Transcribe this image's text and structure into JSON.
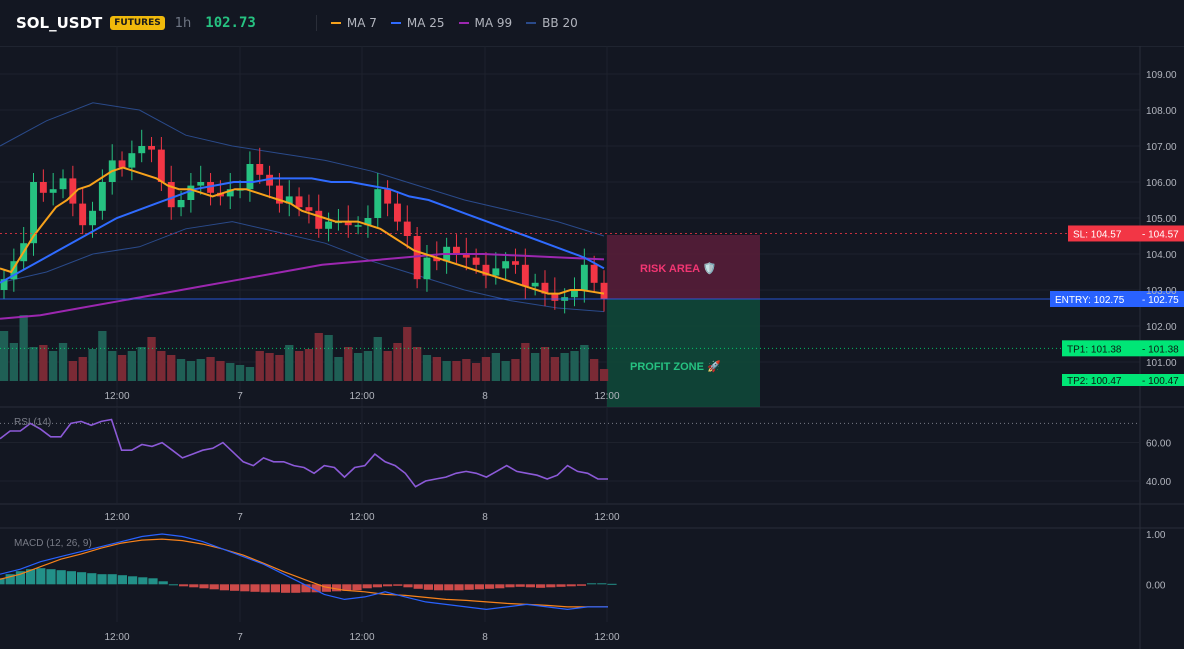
{
  "header": {
    "symbol": "SOL_USDT",
    "market_badge": "FUTURES",
    "timeframe": "1h",
    "last_price": "102.73",
    "legend": [
      {
        "label": "MA 7",
        "color": "#f7a21b"
      },
      {
        "label": "MA 25",
        "color": "#2f6bff"
      },
      {
        "label": "MA 99",
        "color": "#9c27b0"
      },
      {
        "label": "BB 20",
        "color": "#2a4a8a"
      }
    ]
  },
  "chart_data": {
    "type": "candlestick",
    "x_ticks": [
      "12:00",
      "7",
      "12:00",
      "8",
      "12:00"
    ],
    "y_ticks": [
      "109.00",
      "108.00",
      "107.00",
      "106.00",
      "105.00",
      "104.00",
      "103.00",
      "102.00",
      "101.00"
    ],
    "ylim": [
      100.5,
      109.5
    ],
    "close": [
      103.3,
      103.8,
      104.3,
      106.0,
      105.7,
      105.8,
      106.1,
      105.4,
      104.8,
      105.2,
      106.0,
      106.6,
      106.4,
      106.8,
      107.0,
      106.9,
      106.0,
      105.3,
      105.5,
      105.9,
      106.0,
      105.7,
      105.6,
      105.8,
      105.8,
      106.5,
      106.2,
      105.9,
      105.4,
      105.6,
      105.3,
      105.2,
      104.7,
      104.9,
      104.9,
      104.8,
      104.8,
      105.0,
      105.8,
      105.4,
      104.9,
      104.5,
      103.3,
      103.9,
      103.8,
      104.2,
      104.0,
      103.9,
      103.7,
      103.4,
      103.6,
      103.8,
      103.7,
      103.1,
      103.2,
      102.9,
      102.7,
      102.8,
      103.0,
      103.7,
      103.2,
      102.75
    ],
    "ma7": [
      103.6,
      103.5,
      104.0,
      104.5,
      104.9,
      105.3,
      105.5,
      105.8,
      105.9,
      106.1,
      106.3,
      106.4,
      106.3,
      106.2,
      106.1,
      105.9,
      105.8,
      105.8,
      105.7,
      105.6,
      105.7,
      105.8,
      105.8,
      105.7,
      105.6,
      105.5,
      105.4,
      105.2,
      105.1,
      105.0,
      104.9,
      104.9,
      104.9,
      104.8,
      104.7,
      104.5,
      104.3,
      104.1,
      104.0,
      103.9,
      103.8,
      103.7,
      103.6,
      103.5,
      103.4,
      103.3,
      103.2,
      103.1,
      103.0,
      102.9,
      102.9,
      103.0,
      103.0,
      102.95,
      102.9
    ],
    "ma25": [
      103.2,
      103.5,
      103.8,
      104.1,
      104.4,
      104.7,
      105.0,
      105.2,
      105.4,
      105.6,
      105.8,
      105.9,
      106.0,
      106.0,
      106.1,
      106.1,
      106.1,
      106.0,
      106.0,
      105.9,
      105.8,
      105.6,
      105.5,
      105.3,
      105.1,
      104.9,
      104.7,
      104.5,
      104.3,
      104.1,
      103.9,
      103.6
    ],
    "ma99": [
      102.2,
      102.3,
      102.5,
      102.7,
      102.9,
      103.1,
      103.3,
      103.5,
      103.7,
      103.8,
      103.9,
      104.0,
      104.0,
      103.95,
      103.9,
      103.85
    ],
    "bb_upper": [
      107.0,
      107.7,
      108.2,
      108.0,
      107.3,
      107.0,
      106.8,
      106.6,
      106.3,
      105.9,
      105.5,
      105.2,
      104.9,
      104.5
    ],
    "bb_lower": [
      103.2,
      103.5,
      104.0,
      104.2,
      104.7,
      104.9,
      104.6,
      104.3,
      103.8,
      103.4,
      103.0,
      102.7,
      102.5,
      102.4
    ],
    "volume_labels": [],
    "annotations": {
      "sl": {
        "label": "SL: 104.57",
        "value": "104.57",
        "price": 104.57,
        "color": "#f23645"
      },
      "entry": {
        "label": "ENTRY: 102.75",
        "value": "102.75",
        "price": 102.75,
        "color": "#2962ff"
      },
      "tp1": {
        "label": "TP1: 101.38",
        "value": "101.38",
        "price": 101.38,
        "color": "#00e676"
      },
      "tp2": {
        "label": "TP2: 100.47",
        "value": "100.47",
        "price": 100.47,
        "color": "#00e676"
      },
      "risk_area": "RISK AREA 🛡️",
      "profit_zone": "PROFIT ZONE 🚀"
    },
    "rsi": {
      "label": "RSI (14)",
      "y_ticks": [
        "60.00",
        "40.00"
      ],
      "ylim": [
        28,
        78
      ],
      "values": [
        62,
        66,
        66,
        70,
        67,
        63,
        63,
        70,
        71,
        69,
        71,
        72,
        56,
        56,
        59,
        58,
        60,
        56,
        52,
        54,
        56,
        57,
        60,
        55,
        50,
        48,
        52,
        50,
        50,
        48,
        47,
        44,
        48,
        47,
        42,
        47,
        48,
        54,
        50,
        48,
        44,
        37,
        40,
        41,
        42,
        44,
        45,
        44,
        42,
        45,
        48,
        45,
        44,
        43,
        41,
        43,
        48,
        45,
        44,
        41,
        41
      ]
    },
    "macd": {
      "label": "MACD (12, 26, 9)",
      "y_ticks": [
        "1.00",
        "0.00"
      ],
      "ylim": [
        -0.75,
        1.1
      ],
      "macd": [
        0.2,
        0.3,
        0.45,
        0.55,
        0.65,
        0.75,
        0.85,
        0.95,
        1.0,
        0.95,
        0.85,
        0.7,
        0.55,
        0.4,
        0.2,
        0.0,
        -0.2,
        -0.3,
        -0.25,
        -0.15,
        -0.25,
        -0.35,
        -0.4,
        -0.45,
        -0.5,
        -0.45,
        -0.4,
        -0.45,
        -0.5,
        -0.45,
        -0.45
      ],
      "signal": [
        0.1,
        0.2,
        0.35,
        0.5,
        0.6,
        0.72,
        0.82,
        0.88,
        0.9,
        0.87,
        0.8,
        0.7,
        0.58,
        0.42,
        0.25,
        0.1,
        -0.05,
        -0.12,
        -0.15,
        -0.2,
        -0.22,
        -0.26,
        -0.3,
        -0.32,
        -0.35,
        -0.38,
        -0.4,
        -0.42,
        -0.45,
        -0.45,
        -0.45
      ],
      "hist": [
        0.12,
        0.2,
        0.26,
        0.3,
        0.32,
        0.3,
        0.28,
        0.26,
        0.24,
        0.22,
        0.2,
        0.2,
        0.18,
        0.16,
        0.14,
        0.12,
        0.06,
        0.0,
        -0.04,
        -0.06,
        -0.08,
        -0.1,
        -0.12,
        -0.13,
        -0.14,
        -0.15,
        -0.16,
        -0.16,
        -0.17,
        -0.17,
        -0.16,
        -0.16,
        -0.15,
        -0.14,
        -0.13,
        -0.12,
        -0.08,
        -0.06,
        -0.04,
        -0.03,
        -0.06,
        -0.09,
        -0.11,
        -0.12,
        -0.12,
        -0.12,
        -0.11,
        -0.1,
        -0.09,
        -0.08,
        -0.06,
        -0.05,
        -0.06,
        -0.07,
        -0.06,
        -0.05,
        -0.04,
        -0.03,
        0.02,
        0.02,
        0.01
      ]
    }
  }
}
